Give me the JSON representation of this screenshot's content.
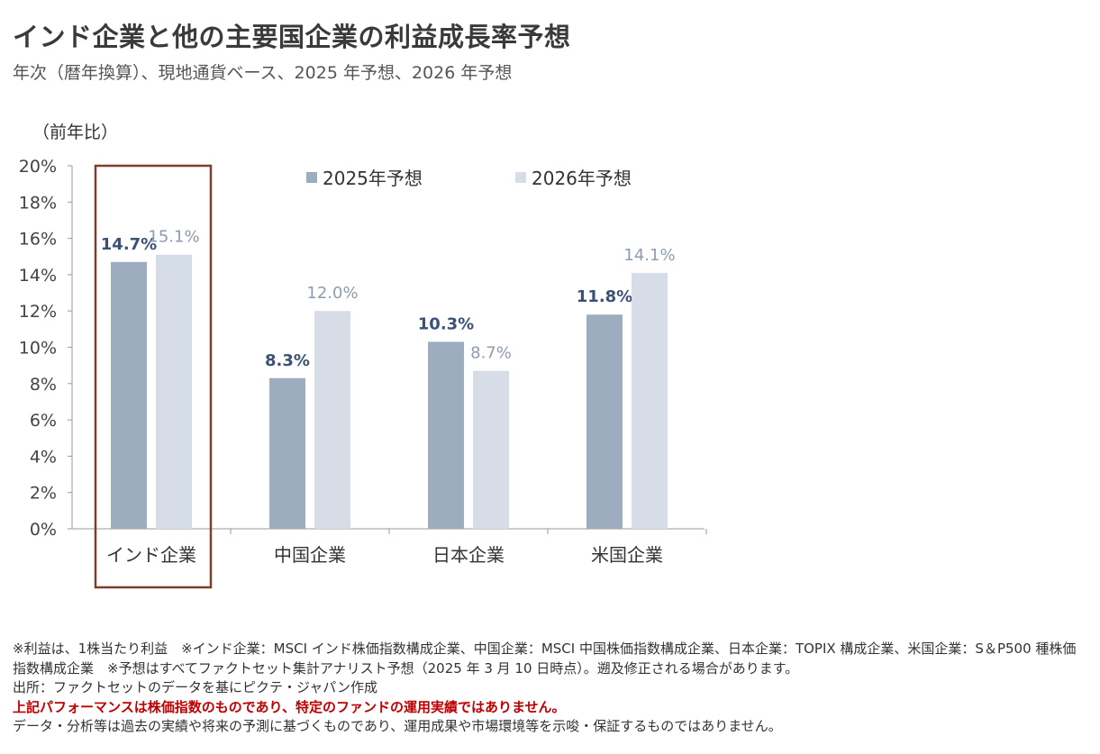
{
  "title": "インド企業と他の主要国企業の利益成長率予想",
  "subtitle": "年次（暦年換算）、現地通貨ベース、2025 年予想、2026 年予想",
  "chart_data": {
    "type": "bar",
    "unit_label": "（前年比）",
    "categories": [
      "インド企業",
      "中国企業",
      "日本企業",
      "米国企業"
    ],
    "series": [
      {
        "name": "2025年予想",
        "values": [
          14.7,
          8.3,
          10.3,
          11.8
        ],
        "labels": [
          "14.7%",
          "8.3%",
          "10.3%",
          "11.8%"
        ],
        "color": "#9eacc0",
        "label_color": "#3b5276"
      },
      {
        "name": "2026年予想",
        "values": [
          15.1,
          12.0,
          8.7,
          14.1
        ],
        "labels": [
          "15.1%",
          "12.0%",
          "8.7%",
          "14.1%"
        ],
        "color": "#d7dde6",
        "label_color": "#8e9cb1"
      }
    ],
    "y_ticks": [
      0,
      2,
      4,
      6,
      8,
      10,
      12,
      14,
      16,
      18,
      20
    ],
    "y_tick_labels": [
      "0%",
      "2%",
      "4%",
      "6%",
      "8%",
      "10%",
      "12%",
      "14%",
      "16%",
      "18%",
      "20%"
    ],
    "ylim": [
      0,
      20
    ],
    "grid": false,
    "legend_position": "top",
    "highlight_category": "インド企業",
    "highlight_color": "#7b3f2c"
  },
  "notes": {
    "line1": "※利益は、1株当たり利益　※インド企業：MSCI インド株価指数構成企業、中国企業：MSCI 中国株価指数構成企業、日本企業：TOPIX 構成企業、米国企業：S＆P500 種株価指数構成企業　※予想はすべてファクトセット集計アナリスト予想（2025 年 3 月 10 日時点）。遡及修正される場合があります。",
    "line2": "出所：ファクトセットのデータを基にピクテ・ジャパン作成",
    "warning": "上記パフォーマンスは株価指数のものであり、特定のファンドの運用実績ではありません。",
    "line3": "データ・分析等は過去の実績や将来の予測に基づくものであり、運用成果や市場環境等を示唆・保証するものではありません。"
  }
}
